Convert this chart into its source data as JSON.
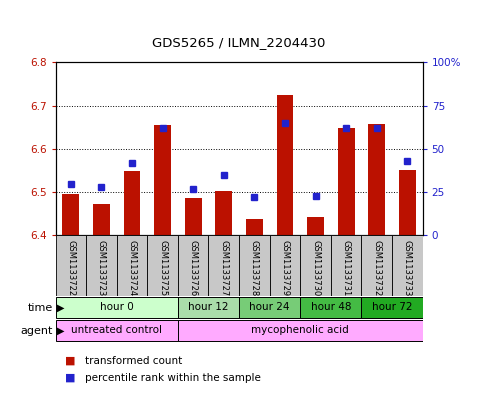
{
  "title": "GDS5265 / ILMN_2204430",
  "samples": [
    "GSM1133722",
    "GSM1133723",
    "GSM1133724",
    "GSM1133725",
    "GSM1133726",
    "GSM1133727",
    "GSM1133728",
    "GSM1133729",
    "GSM1133730",
    "GSM1133731",
    "GSM1133732",
    "GSM1133733"
  ],
  "transformed_count": [
    6.495,
    6.472,
    6.548,
    6.655,
    6.487,
    6.502,
    6.437,
    6.725,
    6.443,
    6.648,
    6.657,
    6.552
  ],
  "percentile_rank": [
    30,
    28,
    42,
    62,
    27,
    35,
    22,
    65,
    23,
    62,
    62,
    43
  ],
  "ylim_left": [
    6.4,
    6.8
  ],
  "ylim_right": [
    0,
    100
  ],
  "yticks_left": [
    6.4,
    6.5,
    6.6,
    6.7,
    6.8
  ],
  "yticks_right": [
    0,
    25,
    50,
    75,
    100
  ],
  "ytick_labels_right": [
    "0",
    "25",
    "50",
    "75",
    "100%"
  ],
  "bar_color": "#bb1100",
  "dot_color": "#2222cc",
  "bar_bottom": 6.4,
  "time_groups": [
    {
      "label": "hour 0",
      "start": 0,
      "end": 3,
      "color": "#ccffcc"
    },
    {
      "label": "hour 12",
      "start": 4,
      "end": 5,
      "color": "#aaddaa"
    },
    {
      "label": "hour 24",
      "start": 6,
      "end": 7,
      "color": "#77cc77"
    },
    {
      "label": "hour 48",
      "start": 8,
      "end": 9,
      "color": "#44bb44"
    },
    {
      "label": "hour 72",
      "start": 10,
      "end": 11,
      "color": "#22aa22"
    }
  ],
  "agent_untreated_color": "#ffaaff",
  "agent_myco_color": "#ffaaff",
  "legend_red_label": "transformed count",
  "legend_blue_label": "percentile rank within the sample",
  "sample_bg": "#c8c8c8"
}
